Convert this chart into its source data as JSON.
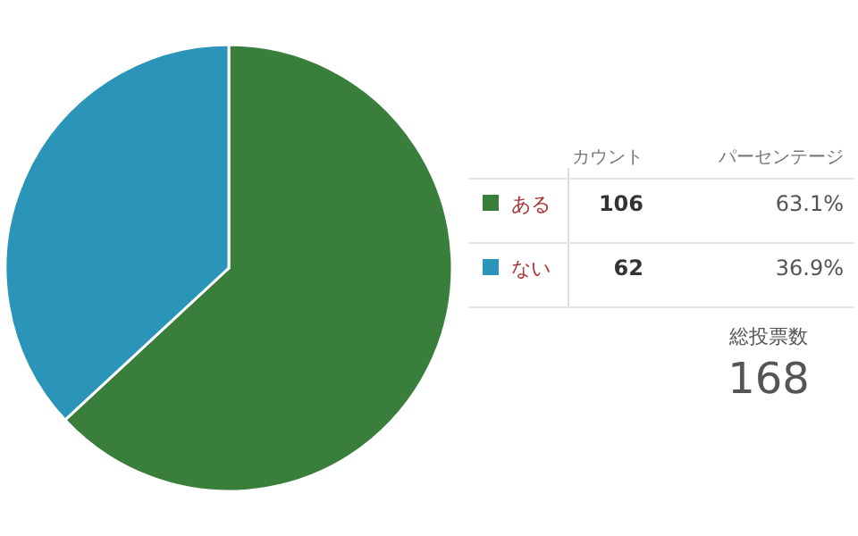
{
  "chart_data": {
    "type": "pie",
    "categories": [
      "ある",
      "ない"
    ],
    "values": [
      106,
      62
    ],
    "colors": [
      "#3a7e3c",
      "#2b95b9"
    ],
    "data_labels": true,
    "legend": "right",
    "annotations": [
      "カウント",
      "パーセンテージ",
      "63.1%",
      "36.9%",
      "総投票数",
      "168"
    ]
  }
}
